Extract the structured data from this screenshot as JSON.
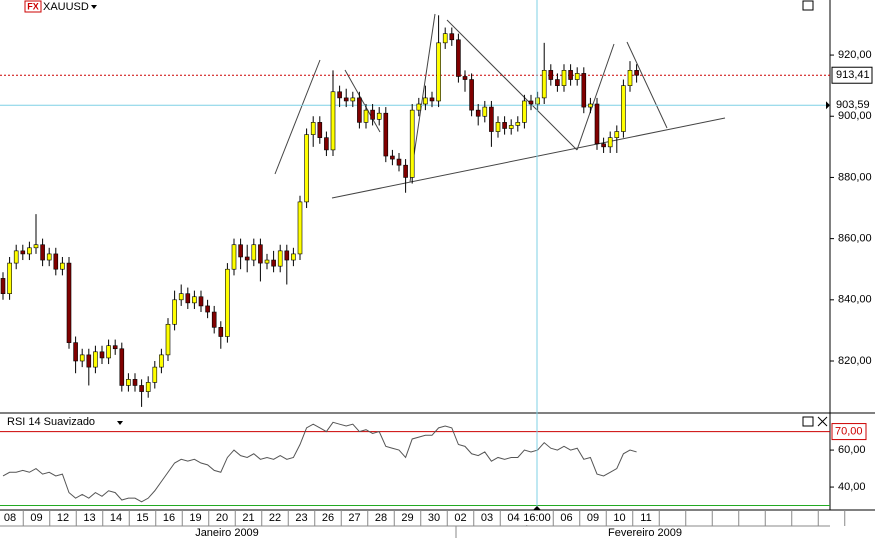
{
  "chart_data": [
    {
      "type": "candlestick",
      "title": "XAUUSD",
      "icon": "FX",
      "open": [
        847,
        842,
        852,
        856,
        855,
        857,
        858,
        853,
        855,
        850,
        852,
        826,
        820,
        822,
        818,
        823,
        821,
        825,
        824,
        812,
        814,
        812,
        810,
        813,
        818,
        822,
        832,
        840,
        842,
        839,
        841,
        838,
        836,
        831,
        828,
        850,
        858,
        854,
        853,
        858,
        852,
        853,
        851,
        856,
        853,
        855,
        872,
        894,
        898,
        893,
        889,
        908,
        906,
        905,
        906,
        898,
        902,
        899,
        901,
        887,
        886,
        884,
        880,
        902,
        904,
        906,
        905,
        924,
        927,
        925,
        913,
        912,
        902,
        900,
        903,
        895,
        898,
        896,
        897,
        898,
        905,
        904,
        906,
        915,
        912,
        910,
        915,
        912,
        914,
        903,
        904,
        891,
        890,
        893,
        895,
        910,
        915
      ],
      "high": [
        849,
        854,
        858,
        858,
        859,
        868,
        860,
        857,
        857,
        854,
        854,
        828,
        824,
        824,
        825,
        825,
        827,
        827,
        826,
        816,
        816,
        814,
        815,
        820,
        824,
        834,
        843,
        845,
        844,
        843,
        843,
        840,
        838,
        833,
        852,
        860,
        860,
        858,
        860,
        860,
        855,
        856,
        858,
        858,
        857,
        874,
        896,
        900,
        900,
        895,
        915,
        910,
        909,
        908,
        908,
        904,
        904,
        903,
        903,
        889,
        888,
        886,
        904,
        906,
        910,
        908,
        933,
        929,
        929,
        927,
        915,
        914,
        904,
        905,
        905,
        900,
        900,
        899,
        900,
        907,
        907,
        908,
        924,
        917,
        914,
        917,
        917,
        916,
        916,
        906,
        906,
        893,
        895,
        897,
        912,
        918,
        917
      ],
      "low": [
        840,
        840,
        850,
        853,
        853,
        855,
        851,
        851,
        848,
        848,
        824,
        816,
        818,
        812,
        816,
        819,
        819,
        822,
        810,
        810,
        810,
        805,
        808,
        811,
        816,
        820,
        830,
        838,
        837,
        837,
        836,
        834,
        829,
        824,
        826,
        848,
        850,
        849,
        851,
        846,
        850,
        849,
        849,
        845,
        851,
        853,
        870,
        890,
        891,
        887,
        887,
        903,
        903,
        903,
        896,
        896,
        897,
        897,
        885,
        884,
        882,
        875,
        878,
        900,
        902,
        903,
        903,
        922,
        923,
        911,
        908,
        900,
        897,
        898,
        890,
        893,
        894,
        894,
        895,
        896,
        902,
        902,
        904,
        910,
        908,
        908,
        910,
        910,
        901,
        901,
        889,
        888,
        888,
        888,
        893,
        908,
        911
      ],
      "close": [
        842,
        852,
        856,
        855,
        857,
        858,
        853,
        855,
        850,
        852,
        826,
        820,
        822,
        818,
        823,
        821,
        825,
        824,
        812,
        814,
        812,
        810,
        813,
        818,
        822,
        832,
        840,
        842,
        839,
        841,
        838,
        836,
        831,
        828,
        850,
        858,
        854,
        853,
        858,
        852,
        853,
        851,
        856,
        853,
        855,
        872,
        894,
        898,
        893,
        889,
        908,
        906,
        905,
        906,
        898,
        902,
        899,
        901,
        887,
        886,
        884,
        880,
        902,
        904,
        906,
        905,
        924,
        927,
        925,
        913,
        912,
        902,
        900,
        903,
        895,
        898,
        896,
        897,
        898,
        905,
        904,
        906,
        915,
        912,
        910,
        915,
        912,
        914,
        903,
        904,
        891,
        890,
        893,
        895,
        910,
        915,
        913.41
      ],
      "up_color": "#ffff00",
      "down_color": "#800000",
      "ylim": [
        803,
        938
      ],
      "yticks": [
        {
          "value": 820,
          "label": "820,00"
        },
        {
          "value": 840,
          "label": "840,00"
        },
        {
          "value": 860,
          "label": "860,00"
        },
        {
          "value": 880,
          "label": "880,00"
        },
        {
          "value": 900,
          "label": "900,00"
        },
        {
          "value": 920,
          "label": "920,00"
        }
      ],
      "last_price": {
        "value": 913.41,
        "label": "913,41"
      },
      "crosshair_price": {
        "value": 903.59,
        "label": "903,59"
      }
    },
    {
      "type": "line",
      "title": "RSI 14 Suavizado",
      "color": "#555555",
      "values": [
        46,
        48,
        48,
        49,
        48,
        50,
        47,
        48,
        46,
        47,
        37,
        34,
        36,
        34,
        37,
        35,
        38,
        37,
        33,
        34,
        34,
        32,
        34,
        38,
        43,
        48,
        53,
        55,
        54,
        55,
        53,
        52,
        49,
        48,
        56,
        60,
        57,
        56,
        58,
        55,
        56,
        55,
        57,
        55,
        56,
        63,
        72,
        74,
        72,
        70,
        75,
        74,
        73,
        74,
        70,
        71,
        69,
        70,
        62,
        61,
        60,
        56,
        66,
        67,
        68,
        68,
        72,
        73,
        72,
        63,
        62,
        58,
        57,
        59,
        54,
        56,
        55,
        56,
        56,
        60,
        59,
        60,
        64,
        61,
        60,
        62,
        60,
        61,
        55,
        56,
        47,
        46,
        48,
        50,
        58,
        60,
        59
      ],
      "ylim": [
        27.6,
        79.5
      ],
      "yticks": [
        {
          "value": 40,
          "label": "40,00"
        },
        {
          "value": 60,
          "label": "60,00"
        }
      ],
      "upper_level": {
        "value": 70,
        "label": "70,00"
      },
      "lower_level": 30
    }
  ],
  "x_axis": {
    "labels": [
      "08",
      "09",
      "12",
      "13",
      "14",
      "15",
      "16",
      "19",
      "20",
      "21",
      "22",
      "23",
      "26",
      "27",
      "28",
      "29",
      "30",
      "02",
      "03",
      "04",
      null,
      "06",
      "09",
      "10",
      "11"
    ],
    "crosshair_time": "16:00",
    "months": [
      "Janeiro 2009",
      "Fevereiro 2009"
    ]
  }
}
